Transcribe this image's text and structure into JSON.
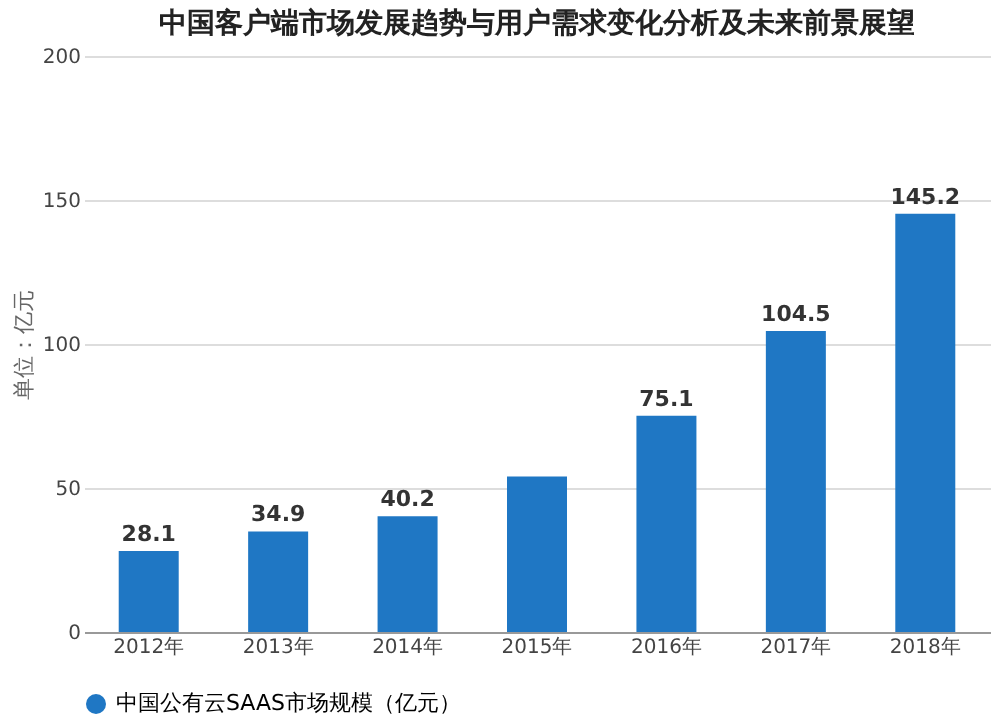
{
  "chart_data": {
    "type": "bar",
    "title": "中国客户端市场发展趋势与用户需求变化分析及未来前景展望",
    "ylabel": "单位：亿元",
    "categories": [
      "2012年",
      "2013年",
      "2014年",
      "2015年",
      "2016年",
      "2017年",
      "2018年"
    ],
    "series": [
      {
        "name": "中国公有云SAAS市场规模（亿元）",
        "color": "#1f77c4",
        "values": [
          28.1,
          34.9,
          40.2,
          54,
          75.1,
          104.5,
          145.2
        ]
      }
    ],
    "value_labels": [
      "28.1",
      "34.9",
      "40.2",
      null,
      "75.1",
      "104.5",
      "145.2"
    ],
    "ylim": [
      0,
      200
    ],
    "yticks": [
      0,
      50,
      100,
      150,
      200
    ],
    "grid": "y",
    "legend": "bottom"
  }
}
